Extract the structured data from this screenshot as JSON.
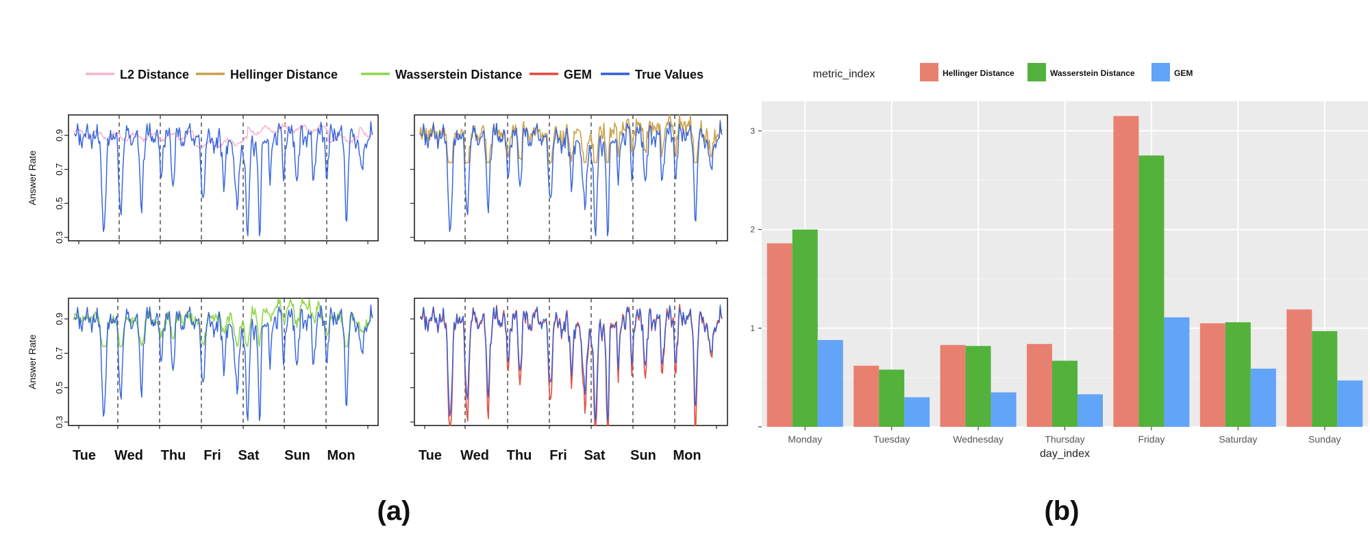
{
  "figure": {
    "panel_a_label": "(a)",
    "panel_b_label": "(b)"
  },
  "colors": {
    "l2": "#f4b6d2",
    "hellinger_line": "#c9a04a",
    "wasserstein_line": "#8fd44a",
    "gem_line": "#e04a3c",
    "true_values": "#2f5fd8",
    "bar_hellinger": "#e88070",
    "bar_wasserstein": "#52b23c",
    "bar_gem": "#62a4f8",
    "ggplot_panel": "#ebebeb"
  },
  "chart_data": [
    {
      "type": "line",
      "id": "a_legend",
      "legend": [
        {
          "name": "L2 Distance",
          "color": "#f4b6d2"
        },
        {
          "name": "Hellinger Distance",
          "color": "#c9a04a"
        },
        {
          "name": "Wasserstein Distance",
          "color": "#8fd44a"
        },
        {
          "name": "GEM",
          "color": "#e04a3c"
        },
        {
          "name": "True Values",
          "color": "#2f5fd8"
        }
      ],
      "legend_position": "top"
    },
    {
      "type": "line",
      "id": "a_top_left",
      "ylabel": "Answer Rate",
      "yticks": [
        "0.3",
        "0.5",
        "0.7",
        "0.9"
      ],
      "ylim": [
        0.28,
        1.02
      ],
      "series": [
        {
          "name": "True Values",
          "color": "#2f5fd8"
        },
        {
          "name": "L2 Distance",
          "color": "#f4b6d2"
        }
      ]
    },
    {
      "type": "line",
      "id": "a_top_right",
      "ylabel": "",
      "ylim": [
        0.28,
        1.02
      ],
      "series": [
        {
          "name": "True Values",
          "color": "#2f5fd8"
        },
        {
          "name": "Hellinger Distance",
          "color": "#c9a04a"
        }
      ]
    },
    {
      "type": "line",
      "id": "a_bottom_left",
      "ylabel": "Answer Rate",
      "yticks": [
        "0.3",
        "0.5",
        "0.7",
        "0.9"
      ],
      "xticks": [
        "Tue",
        "Wed",
        "Thu",
        "Fri",
        "Sat",
        "Sun",
        "Mon"
      ],
      "ylim": [
        0.28,
        1.02
      ],
      "series": [
        {
          "name": "True Values",
          "color": "#2f5fd8"
        },
        {
          "name": "Wasserstein Distance",
          "color": "#8fd44a"
        }
      ]
    },
    {
      "type": "line",
      "id": "a_bottom_right",
      "ylabel": "",
      "xticks": [
        "Tue",
        "Wed",
        "Thu",
        "Fri",
        "Sat",
        "Sun",
        "Mon"
      ],
      "ylim": [
        0.28,
        1.02
      ],
      "series": [
        {
          "name": "True Values",
          "color": "#2f5fd8"
        },
        {
          "name": "GEM",
          "color": "#e04a3c"
        }
      ]
    },
    {
      "type": "bar",
      "id": "b",
      "legend_title": "metric_index",
      "legend_position": "top",
      "xlabel": "day_index",
      "ylabel": "",
      "categories": [
        "Monday",
        "Tuesday",
        "Wednesday",
        "Thursday",
        "Friday",
        "Saturday",
        "Sunday"
      ],
      "yticks": [
        "1",
        "2",
        "3"
      ],
      "ylim": [
        0,
        3.3
      ],
      "series": [
        {
          "name": "Hellinger Distance",
          "color": "#e88070",
          "values": [
            1.86,
            0.62,
            0.83,
            0.84,
            3.15,
            1.05,
            1.19
          ]
        },
        {
          "name": "Wasserstein Distance",
          "color": "#52b23c",
          "values": [
            2.0,
            0.58,
            0.82,
            0.67,
            2.75,
            1.06,
            0.97
          ]
        },
        {
          "name": "GEM",
          "color": "#62a4f8",
          "values": [
            0.88,
            0.3,
            0.35,
            0.33,
            1.11,
            0.59,
            0.47
          ]
        }
      ]
    }
  ]
}
